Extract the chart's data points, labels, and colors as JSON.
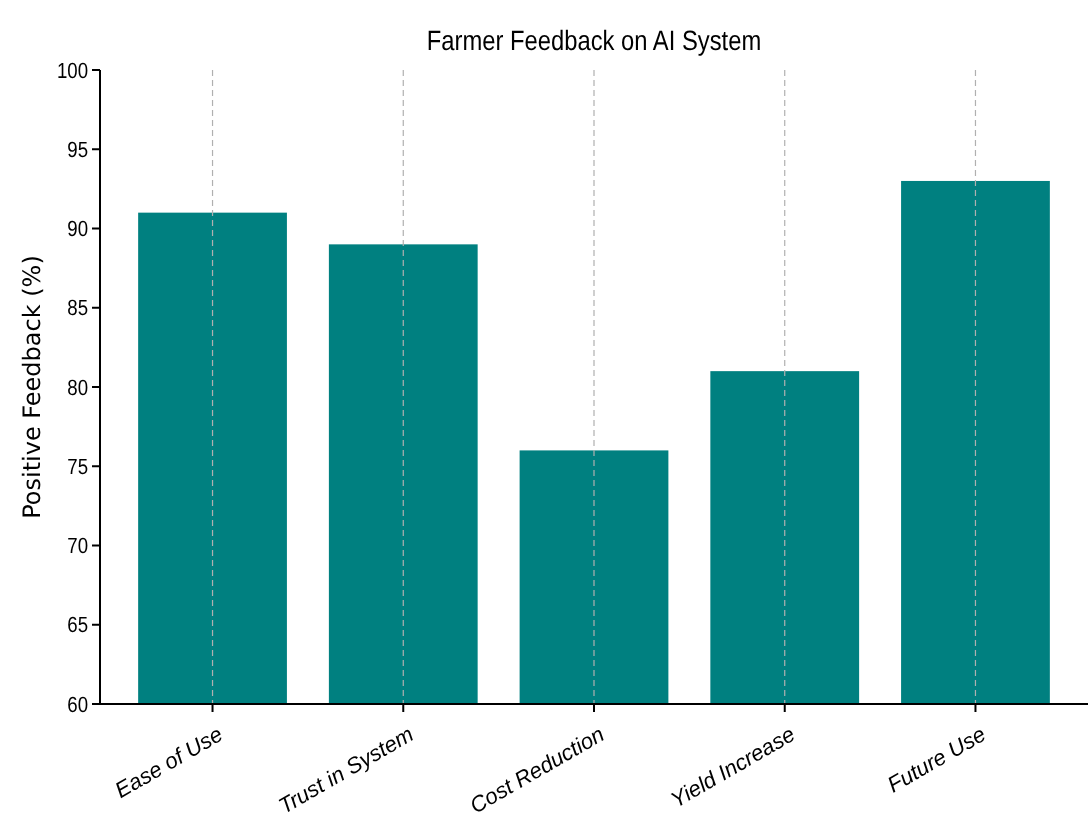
{
  "chart_data": {
    "type": "bar",
    "title": "Farmer Feedback on AI System",
    "ylabel": "Positive Feedback (%)",
    "categories": [
      "Ease of Use",
      "Trust in System",
      "Cost Reduction",
      "Yield Increase",
      "Future Use"
    ],
    "values": [
      91,
      89,
      76,
      81,
      93
    ],
    "color": "#008080",
    "ylim": [
      60,
      100
    ],
    "yticks": [
      60,
      65,
      70,
      75,
      80,
      85,
      90,
      95,
      100
    ],
    "grid": "x"
  }
}
